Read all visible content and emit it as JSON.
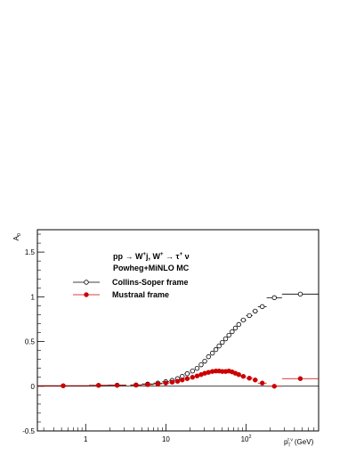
{
  "chart_data": {
    "type": "scatter",
    "ylabel": "A",
    "ylabel_sub": "0",
    "xlabel_sym": "p",
    "xlabel_sub": "T",
    "xlabel_sup": "τ ν",
    "xlabel_unit": "(GeV)",
    "x_scale": "log",
    "xlim": [
      0.25,
      800
    ],
    "ylim": [
      -0.5,
      1.75
    ],
    "y_ticks": [
      "-0.5",
      "0",
      "0.5",
      "1",
      "1.5"
    ],
    "x_ticks": [
      {
        "value": 1,
        "label": "1"
      },
      {
        "value": 10,
        "label": "10"
      },
      {
        "value": 100,
        "label": "10",
        "sup": "2"
      }
    ],
    "annotation": {
      "process": "pp → W",
      "process_sup1": "+",
      "process_mid": "j, W",
      "process_sup2": "+",
      "process_end": " → τ",
      "process_sup3": "+",
      "process_nu": " ν",
      "generator": "Powheg+MiNLO MC"
    },
    "legend_placement": "top-left",
    "series": [
      {
        "name": "Collins-Soper frame",
        "marker": "open-circle",
        "color": "#000000",
        "points": [
          {
            "x": 0.25,
            "xmax": 1.1,
            "y": 0.005
          },
          {
            "x": 1.1,
            "xmax": 1.9,
            "y": 0.01
          },
          {
            "x": 1.9,
            "xmax": 3.2,
            "y": 0.012
          },
          {
            "x": 3.6,
            "xmax": 5.0,
            "y": 0.015
          },
          {
            "x": 5.0,
            "xmax": 7.0,
            "y": 0.025
          },
          {
            "x": 7.0,
            "xmax": 9.0,
            "y": 0.035
          },
          {
            "x": 9.0,
            "xmax": 11.0,
            "y": 0.05
          },
          {
            "x": 11.0,
            "xmax": 13.0,
            "y": 0.065
          },
          {
            "x": 13.0,
            "xmax": 15.0,
            "y": 0.085
          },
          {
            "x": 15.0,
            "xmax": 17.0,
            "y": 0.11
          },
          {
            "x": 17.0,
            "xmax": 20.0,
            "y": 0.14
          },
          {
            "x": 20.0,
            "xmax": 23.0,
            "y": 0.17
          },
          {
            "x": 23.0,
            "xmax": 26.0,
            "y": 0.2
          },
          {
            "x": 26.0,
            "xmax": 29.0,
            "y": 0.24
          },
          {
            "x": 29.0,
            "xmax": 32.0,
            "y": 0.28
          },
          {
            "x": 32.0,
            "xmax": 36.0,
            "y": 0.33
          },
          {
            "x": 36.0,
            "xmax": 40.0,
            "y": 0.37
          },
          {
            "x": 40.0,
            "xmax": 44.0,
            "y": 0.41
          },
          {
            "x": 44.0,
            "xmax": 48.0,
            "y": 0.45
          },
          {
            "x": 48.0,
            "xmax": 53.0,
            "y": 0.49
          },
          {
            "x": 53.0,
            "xmax": 58.0,
            "y": 0.53
          },
          {
            "x": 58.0,
            "xmax": 64.0,
            "y": 0.57
          },
          {
            "x": 64.0,
            "xmax": 70.0,
            "y": 0.61
          },
          {
            "x": 70.0,
            "xmax": 77.0,
            "y": 0.65
          },
          {
            "x": 77.0,
            "xmax": 85.0,
            "y": 0.69
          },
          {
            "x": 85.0,
            "xmax": 100.0,
            "y": 0.74
          },
          {
            "x": 100.0,
            "xmax": 120.0,
            "y": 0.79
          },
          {
            "x": 120.0,
            "xmax": 140.0,
            "y": 0.84
          },
          {
            "x": 140.0,
            "xmax": 180.0,
            "y": 0.89
          },
          {
            "x": 180.0,
            "xmax": 280.0,
            "y": 0.99
          },
          {
            "x": 280.0,
            "xmax": 800.0,
            "y": 1.03
          }
        ]
      },
      {
        "name": "Mustraal frame",
        "marker": "filled-circle",
        "color": "#cc0000",
        "points": [
          {
            "x": 0.25,
            "xmax": 1.1,
            "y": 0.005
          },
          {
            "x": 1.1,
            "xmax": 1.9,
            "y": 0.01
          },
          {
            "x": 1.9,
            "xmax": 3.2,
            "y": 0.01
          },
          {
            "x": 3.6,
            "xmax": 5.0,
            "y": 0.012
          },
          {
            "x": 5.0,
            "xmax": 7.0,
            "y": 0.018
          },
          {
            "x": 7.0,
            "xmax": 9.0,
            "y": 0.025
          },
          {
            "x": 9.0,
            "xmax": 11.0,
            "y": 0.035
          },
          {
            "x": 11.0,
            "xmax": 13.0,
            "y": 0.045
          },
          {
            "x": 13.0,
            "xmax": 15.0,
            "y": 0.055
          },
          {
            "x": 15.0,
            "xmax": 17.0,
            "y": 0.07
          },
          {
            "x": 17.0,
            "xmax": 20.0,
            "y": 0.085
          },
          {
            "x": 20.0,
            "xmax": 23.0,
            "y": 0.1
          },
          {
            "x": 23.0,
            "xmax": 26.0,
            "y": 0.115
          },
          {
            "x": 26.0,
            "xmax": 29.0,
            "y": 0.13
          },
          {
            "x": 29.0,
            "xmax": 32.0,
            "y": 0.145
          },
          {
            "x": 32.0,
            "xmax": 36.0,
            "y": 0.155
          },
          {
            "x": 36.0,
            "xmax": 40.0,
            "y": 0.165
          },
          {
            "x": 40.0,
            "xmax": 44.0,
            "y": 0.17
          },
          {
            "x": 44.0,
            "xmax": 48.0,
            "y": 0.17
          },
          {
            "x": 48.0,
            "xmax": 53.0,
            "y": 0.165
          },
          {
            "x": 53.0,
            "xmax": 58.0,
            "y": 0.165
          },
          {
            "x": 58.0,
            "xmax": 64.0,
            "y": 0.17
          },
          {
            "x": 64.0,
            "xmax": 70.0,
            "y": 0.16
          },
          {
            "x": 70.0,
            "xmax": 77.0,
            "y": 0.145
          },
          {
            "x": 77.0,
            "xmax": 85.0,
            "y": 0.13
          },
          {
            "x": 85.0,
            "xmax": 100.0,
            "y": 0.11
          },
          {
            "x": 100.0,
            "xmax": 120.0,
            "y": 0.09
          },
          {
            "x": 120.0,
            "xmax": 140.0,
            "y": 0.07
          },
          {
            "x": 140.0,
            "xmax": 180.0,
            "y": 0.035
          },
          {
            "x": 180.0,
            "xmax": 280.0,
            "y": 0.0
          },
          {
            "x": 280.0,
            "xmax": 800.0,
            "y": 0.085
          }
        ]
      }
    ]
  }
}
